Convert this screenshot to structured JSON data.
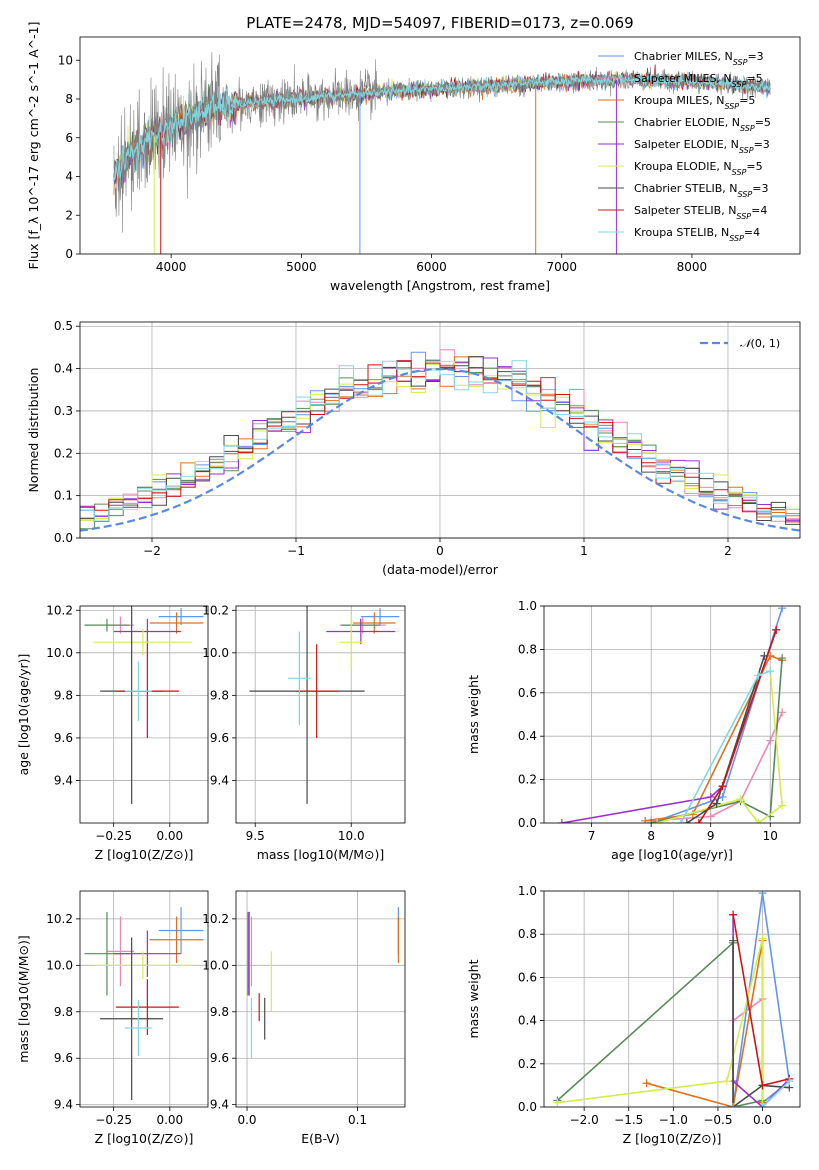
{
  "figure": {
    "title": "PLATE=2478, MJD=54097, FIBERID=0173, z=0.069"
  },
  "chart_data": [
    {
      "id": "spectrum",
      "type": "line",
      "title": "PLATE=2478, MJD=54097, FIBERID=0173, z=0.069",
      "xlabel": "wavelength [Angstrom, rest frame]",
      "ylabel": "Flux [f_λ 10^-17 erg cm^-2 s^-1 A^-1]",
      "xlim": [
        3300,
        8830
      ],
      "ylim": [
        0,
        11.2
      ],
      "xticks": [
        4000,
        5000,
        6000,
        7000,
        8000
      ],
      "yticks": [
        0,
        2,
        4,
        6,
        8,
        10
      ],
      "continuum": [
        [
          3560,
          4.0
        ],
        [
          3700,
          5.3
        ],
        [
          3900,
          6.2
        ],
        [
          4100,
          6.9
        ],
        [
          4300,
          7.5
        ],
        [
          4600,
          7.8
        ],
        [
          5000,
          8.0
        ],
        [
          5500,
          8.3
        ],
        [
          6000,
          8.5
        ],
        [
          6500,
          8.7
        ],
        [
          7000,
          8.9
        ],
        [
          7500,
          9.0
        ],
        [
          8000,
          8.9
        ],
        [
          8400,
          8.7
        ],
        [
          8600,
          8.6
        ]
      ],
      "noise_sigma_blue": 1.4,
      "noise_sigma_red": 0.25,
      "masked_regions": [
        3870,
        3920,
        5450,
        6800,
        7420
      ],
      "legend": [
        "Chabrier MILES, N_SSP=3",
        "Salpeter MILES, N_SSP=5",
        "Kroupa MILES, N_SSP=5",
        "Chabrier ELODIE, N_SSP=5",
        "Salpeter ELODIE, N_SSP=3",
        "Kroupa ELODIE, N_SSP=5",
        "Chabrier STELIB, N_SSP=3",
        "Salpeter STELIB, N_SSP=4",
        "Kroupa STELIB, N_SSP=4"
      ],
      "legend_position": "upper right"
    },
    {
      "id": "residuals",
      "type": "step-histogram",
      "xlabel": "(data-model)/error",
      "ylabel": "Normed distribution",
      "xlim": [
        -2.5,
        2.5
      ],
      "ylim": [
        0,
        0.51
      ],
      "xticks": [
        -2,
        -1,
        0,
        1,
        2
      ],
      "yticks": [
        0.0,
        0.1,
        0.2,
        0.3,
        0.4,
        0.5
      ],
      "bin_width": 0.1,
      "reference": {
        "label": "N(0,1)",
        "mean": 0,
        "sigma": 1,
        "style": "dashed"
      },
      "legend_position": "upper right",
      "grid": true
    },
    {
      "id": "age_vs_Z",
      "type": "errorbar",
      "xlabel": "Z [log10(Z/Z⊙)]",
      "ylabel": "age [log10(age/yr)]",
      "xlim": [
        -0.4,
        0.17
      ],
      "ylim": [
        9.2,
        10.22
      ],
      "xticks": [
        -0.25,
        0.0
      ],
      "yticks": [
        9.4,
        9.6,
        9.8,
        10.0,
        10.2
      ],
      "grid": true,
      "points": [
        {
          "series": 0,
          "x": 0.05,
          "y": 10.17,
          "xerr": 0.1,
          "yerr": 0.04
        },
        {
          "series": 1,
          "x": -0.22,
          "y": 10.13,
          "xerr": 0.06,
          "yerr": 0.04
        },
        {
          "series": 2,
          "x": 0.03,
          "y": 10.14,
          "xerr": 0.12,
          "yerr": 0.05
        },
        {
          "series": 3,
          "x": -0.28,
          "y": 10.13,
          "xerr": 0.1,
          "yerr": 0.03
        },
        {
          "series": 4,
          "x": -0.1,
          "y": 10.1,
          "xerr": 0.15,
          "yerr": 0.06
        },
        {
          "series": 5,
          "x": -0.12,
          "y": 10.05,
          "xerr": 0.22,
          "yerr": 0.06
        },
        {
          "series": 6,
          "x": -0.17,
          "y": 9.82,
          "xerr": 0.14,
          "yerr": 0.53
        },
        {
          "series": 7,
          "x": -0.1,
          "y": 9.82,
          "xerr": 0.14,
          "yerr": 0.22
        },
        {
          "series": 8,
          "x": -0.14,
          "y": 9.82,
          "xerr": 0.06,
          "yerr": 0.14
        }
      ]
    },
    {
      "id": "age_vs_mass",
      "type": "errorbar",
      "xlabel": "mass [log10(M/M⊙)]",
      "ylabel": "",
      "xlim": [
        9.4,
        10.28
      ],
      "ylim": [
        9.2,
        10.22
      ],
      "xticks": [
        9.5,
        10.0
      ],
      "yticks": [
        9.4,
        9.6,
        9.8,
        10.0,
        10.2
      ],
      "grid": true,
      "points": [
        {
          "series": 0,
          "x": 10.15,
          "y": 10.17,
          "xerr": 0.1,
          "yerr": 0.04
        },
        {
          "series": 1,
          "x": 10.06,
          "y": 10.13,
          "xerr": 0.12,
          "yerr": 0.04
        },
        {
          "series": 2,
          "x": 10.12,
          "y": 10.14,
          "xerr": 0.11,
          "yerr": 0.05
        },
        {
          "series": 3,
          "x": 10.05,
          "y": 10.13,
          "xerr": 0.1,
          "yerr": 0.03
        },
        {
          "series": 4,
          "x": 10.05,
          "y": 10.1,
          "xerr": 0.18,
          "yerr": 0.06
        },
        {
          "series": 5,
          "x": 10.0,
          "y": 10.05,
          "xerr": 0.06,
          "yerr": 0.13
        },
        {
          "series": 6,
          "x": 9.77,
          "y": 9.82,
          "xerr": 0.3,
          "yerr": 0.53
        },
        {
          "series": 7,
          "x": 9.82,
          "y": 9.82,
          "xerr": 0.11,
          "yerr": 0.22
        },
        {
          "series": 8,
          "x": 9.73,
          "y": 9.88,
          "xerr": 0.06,
          "yerr": 0.22
        }
      ]
    },
    {
      "id": "weights_vs_age",
      "type": "line",
      "xlabel": "age [log10(age/yr)]",
      "ylabel": "mass weight",
      "xlim": [
        6.2,
        10.5
      ],
      "ylim": [
        0,
        1.0
      ],
      "xticks": [
        7,
        8,
        9,
        10
      ],
      "yticks": [
        0.0,
        0.2,
        0.4,
        0.6,
        0.8,
        1.0
      ],
      "grid": true,
      "series": [
        {
          "series": 0,
          "points": [
            [
              8.0,
              0.0
            ],
            [
              9.2,
              0.12
            ],
            [
              10.2,
              0.99
            ]
          ]
        },
        {
          "series": 1,
          "points": [
            [
              8.0,
              0.01
            ],
            [
              9.0,
              0.03
            ],
            [
              9.5,
              0.1
            ],
            [
              10.0,
              0.38
            ],
            [
              10.2,
              0.51
            ]
          ]
        },
        {
          "series": 2,
          "points": [
            [
              7.9,
              0.01
            ],
            [
              8.7,
              0.04
            ],
            [
              10.0,
              0.77
            ],
            [
              10.2,
              0.75
            ]
          ]
        },
        {
          "series": 3,
          "points": [
            [
              8.0,
              0.0
            ],
            [
              9.5,
              0.1
            ],
            [
              10.0,
              0.03
            ],
            [
              10.2,
              0.76
            ]
          ]
        },
        {
          "series": 4,
          "points": [
            [
              6.5,
              0.0
            ],
            [
              9.0,
              0.12
            ],
            [
              9.2,
              0.17
            ],
            [
              10.1,
              0.89
            ]
          ]
        },
        {
          "series": 5,
          "points": [
            [
              8.1,
              0.0
            ],
            [
              9.5,
              0.11
            ],
            [
              9.8,
              0.0
            ],
            [
              10.2,
              0.08
            ],
            [
              10.0,
              0.7
            ]
          ]
        },
        {
          "series": 6,
          "points": [
            [
              8.6,
              0.0
            ],
            [
              9.1,
              0.09
            ],
            [
              9.9,
              0.77
            ]
          ]
        },
        {
          "series": 7,
          "points": [
            [
              8.8,
              0.0
            ],
            [
              9.2,
              0.17
            ],
            [
              10.1,
              0.89
            ]
          ]
        },
        {
          "series": 8,
          "points": [
            [
              8.5,
              0.0
            ],
            [
              9.8,
              0.68
            ],
            [
              10.0,
              0.7
            ]
          ]
        }
      ]
    },
    {
      "id": "mass_vs_Z",
      "type": "errorbar",
      "xlabel": "Z [log10(Z/Z⊙)]",
      "ylabel": "mass [log10(M/M⊙)]",
      "xlim": [
        -0.4,
        0.17
      ],
      "ylim": [
        9.39,
        10.32
      ],
      "xticks": [
        -0.25,
        0.0
      ],
      "yticks": [
        9.4,
        9.6,
        9.8,
        10.0,
        10.2
      ],
      "grid": true,
      "points": [
        {
          "series": 0,
          "x": 0.05,
          "y": 10.15,
          "xerr": 0.1,
          "yerr": 0.1
        },
        {
          "series": 1,
          "x": -0.22,
          "y": 10.06,
          "xerr": 0.06,
          "yerr": 0.15
        },
        {
          "series": 2,
          "x": 0.03,
          "y": 10.11,
          "xerr": 0.12,
          "yerr": 0.1
        },
        {
          "series": 3,
          "x": -0.28,
          "y": 10.05,
          "xerr": 0.1,
          "yerr": 0.18
        },
        {
          "series": 4,
          "x": -0.1,
          "y": 10.05,
          "xerr": 0.15,
          "yerr": 0.1
        },
        {
          "series": 5,
          "x": -0.12,
          "y": 10.0,
          "xerr": 0.22,
          "yerr": 0.06
        },
        {
          "series": 6,
          "x": -0.17,
          "y": 9.77,
          "xerr": 0.14,
          "yerr": 0.35
        },
        {
          "series": 7,
          "x": -0.1,
          "y": 9.82,
          "xerr": 0.14,
          "yerr": 0.12
        },
        {
          "series": 8,
          "x": -0.14,
          "y": 9.73,
          "xerr": 0.06,
          "yerr": 0.12
        }
      ]
    },
    {
      "id": "mass_vs_ebv",
      "type": "errorbar",
      "xlabel": "E(B-V)",
      "ylabel": "",
      "xlim": [
        -0.01,
        0.143
      ],
      "ylim": [
        9.39,
        10.32
      ],
      "xticks": [
        0.0,
        0.1
      ],
      "yticks": [
        9.4,
        9.6,
        9.8,
        10.0,
        10.2
      ],
      "grid": true,
      "points": [
        {
          "series": 0,
          "x": 0.137,
          "y": 10.15,
          "xerr": 0,
          "yerr": 0.1
        },
        {
          "series": 1,
          "x": 0.004,
          "y": 10.06,
          "xerr": 0,
          "yerr": 0.15
        },
        {
          "series": 2,
          "x": 0.137,
          "y": 10.11,
          "xerr": 0,
          "yerr": 0.1
        },
        {
          "series": 3,
          "x": 0.002,
          "y": 10.05,
          "xerr": 0,
          "yerr": 0.18
        },
        {
          "series": 4,
          "x": 0.001,
          "y": 10.05,
          "xerr": 0,
          "yerr": 0.18
        },
        {
          "series": 5,
          "x": 0.022,
          "y": 9.93,
          "xerr": 0,
          "yerr": 0.13
        },
        {
          "series": 6,
          "x": 0.016,
          "y": 9.77,
          "xerr": 0,
          "yerr": 0.09
        },
        {
          "series": 7,
          "x": 0.011,
          "y": 9.82,
          "xerr": 0,
          "yerr": 0.06
        },
        {
          "series": 8,
          "x": 0.004,
          "y": 9.73,
          "xerr": 0,
          "yerr": 0.13
        }
      ]
    },
    {
      "id": "weights_vs_Z",
      "type": "line",
      "xlabel": "Z [log10(Z/Z⊙)]",
      "ylabel": "mass weight",
      "xlim": [
        -2.45,
        0.42
      ],
      "ylim": [
        0,
        1.0
      ],
      "xticks": [
        -2.0,
        -1.5,
        -1.0,
        -0.5,
        0.0
      ],
      "yticks": [
        0.0,
        0.2,
        0.4,
        0.6,
        0.8,
        1.0
      ],
      "grid": true,
      "series": [
        {
          "series": 0,
          "points": [
            [
              -0.33,
              0.0
            ],
            [
              0.0,
              0.99
            ],
            [
              0.3,
              0.12
            ],
            [
              0.0,
              0.02
            ]
          ]
        },
        {
          "series": 1,
          "points": [
            [
              -0.33,
              0.0
            ],
            [
              -0.33,
              0.4
            ],
            [
              0.0,
              0.5
            ],
            [
              0.0,
              0.02
            ]
          ]
        },
        {
          "series": 2,
          "points": [
            [
              -1.3,
              0.11
            ],
            [
              -0.33,
              0.0
            ],
            [
              0.0,
              0.77
            ],
            [
              0.0,
              0.02
            ]
          ]
        },
        {
          "series": 3,
          "points": [
            [
              -2.3,
              0.03
            ],
            [
              -0.33,
              0.76
            ],
            [
              -0.33,
              0.0
            ],
            [
              0.0,
              0.03
            ]
          ]
        },
        {
          "series": 4,
          "points": [
            [
              -0.33,
              0.89
            ],
            [
              -0.33,
              0.12
            ],
            [
              0.0,
              0.0
            ],
            [
              0.3,
              0.13
            ]
          ]
        },
        {
          "series": 5,
          "points": [
            [
              -2.3,
              0.02
            ],
            [
              -0.4,
              0.12
            ],
            [
              0.0,
              0.78
            ],
            [
              0.0,
              0.0
            ]
          ]
        },
        {
          "series": 6,
          "points": [
            [
              -0.33,
              0.77
            ],
            [
              -0.33,
              0.0
            ],
            [
              0.0,
              0.1
            ],
            [
              0.3,
              0.09
            ]
          ]
        },
        {
          "series": 7,
          "points": [
            [
              -0.33,
              0.89
            ],
            [
              0.0,
              0.1
            ],
            [
              0.3,
              0.13
            ]
          ]
        },
        {
          "series": 8,
          "points": [
            [
              -0.33,
              0.0
            ],
            [
              0.0,
              0.0
            ],
            [
              0.3,
              0.12
            ]
          ]
        }
      ]
    }
  ],
  "series_colors": [
    "#6495ed",
    "#e889b5",
    "#e07020",
    "#5a8a5a",
    "#9932cc",
    "#d4ec50",
    "#4a4a4a",
    "#cc1515",
    "#80d8e0"
  ],
  "spectrum_data_color": "#808080"
}
